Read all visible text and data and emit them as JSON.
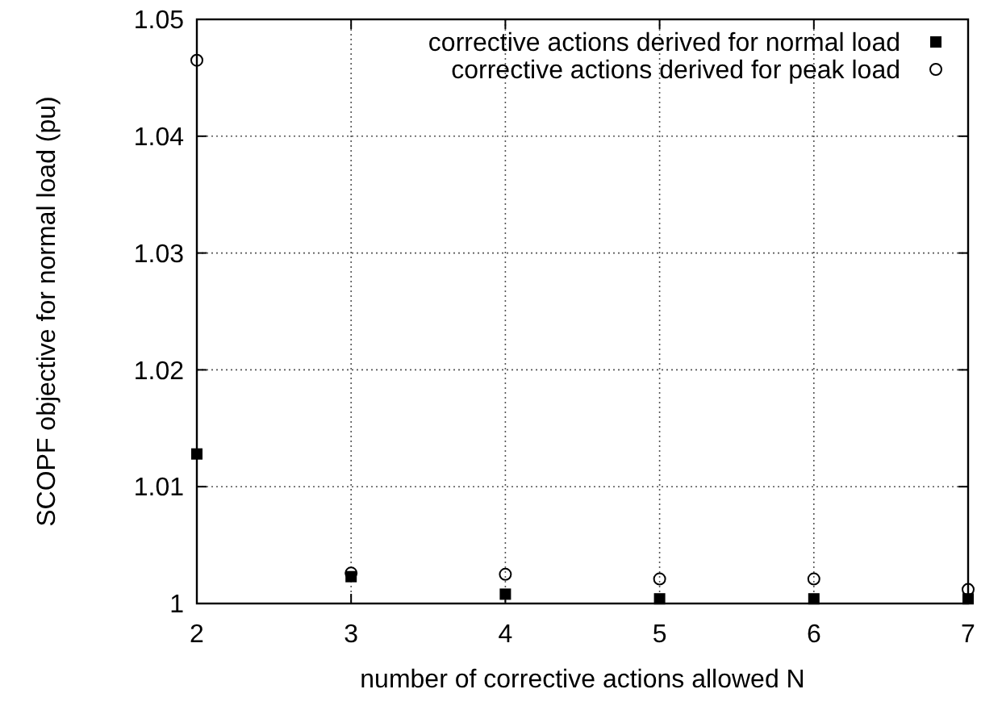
{
  "chart_data": {
    "type": "scatter",
    "xlabel": "number of corrective actions allowed N",
    "ylabel": "SCOPF objective for normal load (pu)",
    "x": [
      2,
      3,
      4,
      5,
      6,
      7
    ],
    "series": [
      {
        "name": "corrective actions derived for normal load",
        "color": "#000000",
        "marker": "square",
        "values": [
          1.0128,
          1.0023,
          1.0008,
          1.0004,
          1.0004,
          1.0004
        ]
      },
      {
        "name": "corrective actions derived for peak load",
        "color": "#000000",
        "marker": "circle",
        "values": [
          1.0465,
          1.0026,
          1.0025,
          1.0021,
          1.0021,
          1.0012
        ]
      }
    ],
    "xlim": [
      2,
      7
    ],
    "xticks": [
      2,
      3,
      4,
      5,
      6,
      7
    ],
    "ylim": [
      1,
      1.05
    ],
    "yticks": [
      {
        "value": 1,
        "label": "1"
      },
      1.01,
      1.02,
      1.03,
      1.04,
      1.05
    ],
    "grid": true,
    "legend": "top right"
  }
}
